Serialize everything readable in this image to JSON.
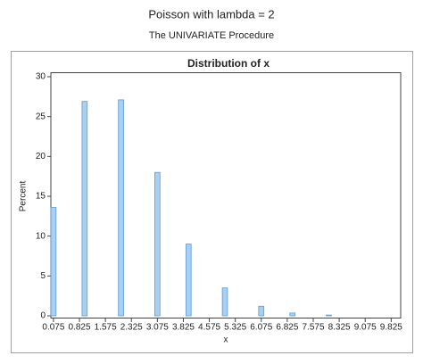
{
  "title": "Poisson with lambda = 2",
  "subtitle": "The UNIVARIATE Procedure",
  "chart_data": {
    "type": "histogram",
    "title": "Distribution of x",
    "x_label": "x",
    "y_label": "Percent",
    "bins": [
      0,
      0.15,
      0.3,
      0.45,
      0.6,
      0.75,
      0.9,
      1.05,
      1.2,
      1.35,
      1.5,
      1.65,
      1.8,
      1.95,
      2.1,
      2.25,
      2.4,
      2.55,
      2.7,
      2.85,
      3,
      3.15,
      3.3,
      3.45,
      3.6,
      3.75,
      3.9,
      4.05,
      4.2,
      4.35,
      4.5,
      4.65,
      4.8,
      4.95,
      5.1,
      5.25,
      5.4,
      5.55,
      5.7,
      5.85,
      6,
      6.15,
      6.3,
      6.45,
      6.6,
      6.75,
      6.9,
      7.05,
      7.2,
      7.35,
      7.5,
      7.65,
      7.8,
      7.95,
      8.1,
      8.25,
      8.4,
      8.55,
      8.7,
      8.85,
      9,
      9.15,
      9.3,
      9.45,
      9.6,
      9.75,
      9.9
    ],
    "values": [
      13.6,
      0,
      0,
      0,
      0,
      0,
      26.9,
      0,
      0,
      0,
      0,
      0,
      0,
      27.1,
      0,
      0,
      0,
      0,
      0,
      0,
      18.0,
      0,
      0,
      0,
      0,
      0,
      9.0,
      0,
      0,
      0,
      0,
      0,
      0,
      3.5,
      0,
      0,
      0,
      0,
      0,
      0,
      1.2,
      0,
      0,
      0,
      0,
      0,
      0.35,
      0,
      0,
      0,
      0,
      0,
      0,
      0.1,
      0,
      0,
      0,
      0,
      0,
      0,
      0,
      0,
      0,
      0,
      0,
      0
    ],
    "color": "#a9d0f2",
    "edge_color": "#5b9bd5",
    "xlim": [
      0,
      10.1
    ],
    "ylim": [
      0,
      30
    ],
    "xticks": [
      0.075,
      0.825,
      1.575,
      2.325,
      3.075,
      3.825,
      4.575,
      5.325,
      6.075,
      6.825,
      7.575,
      8.325,
      9.075,
      9.825
    ],
    "yticks": [
      0,
      5,
      10,
      15,
      20,
      25,
      30
    ]
  }
}
